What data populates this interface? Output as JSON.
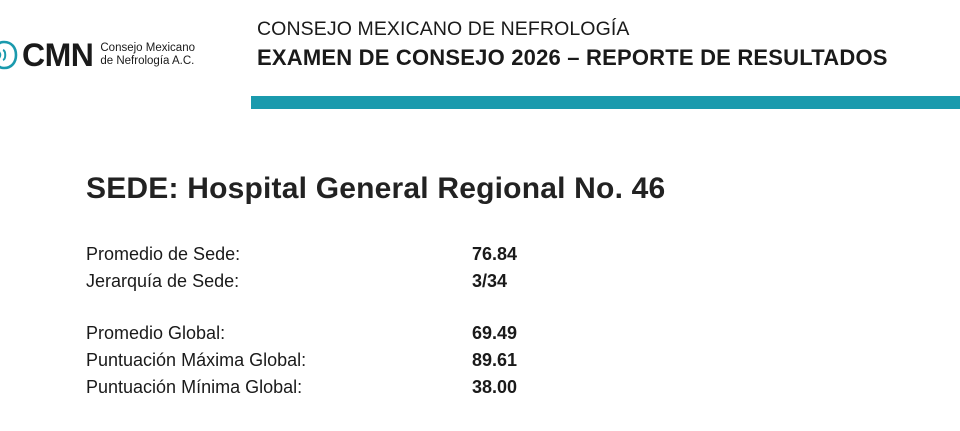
{
  "logo": {
    "abbreviation": "CMN",
    "name_line1": "Consejo Mexicano",
    "name_line2": "de Nefrología A.C."
  },
  "header": {
    "organization": "CONSEJO MEXICANO DE NEFROLOGÍA",
    "report_title": "EXAMEN DE CONSEJO 2026 – REPORTE DE RESULTADOS",
    "accent_color": "#1a9aad"
  },
  "sede": {
    "heading": "SEDE: Hospital General Regional No. 46"
  },
  "site_stats": [
    {
      "label": "Promedio de Sede:",
      "value": "76.84"
    },
    {
      "label": "Jerarquía de Sede:",
      "value": "3/34"
    }
  ],
  "global_stats": [
    {
      "label": "Promedio Global:",
      "value": "69.49"
    },
    {
      "label": "Puntuación Máxima Global:",
      "value": "89.61"
    },
    {
      "label": "Puntuación Mínima Global:",
      "value": "38.00"
    }
  ]
}
